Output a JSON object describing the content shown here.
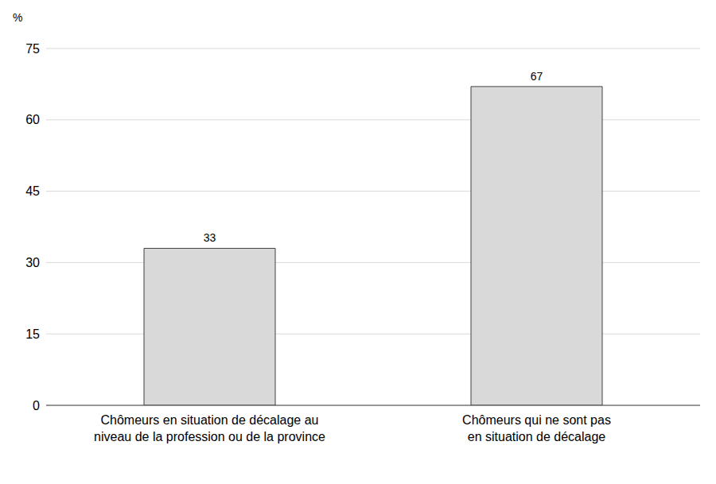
{
  "chart_data": {
    "type": "bar",
    "ylabel": "%",
    "categories": [
      "Chômeurs en situation de décalage au\nniveau de la profession ou de la province",
      "Chômeurs qui ne sont pas\nen situation de décalage"
    ],
    "values": [
      33,
      67
    ],
    "color": "#d9d9d9",
    "ylim": [
      0,
      75
    ],
    "yticks": [
      0,
      15,
      30,
      45,
      60,
      75
    ],
    "grid": true,
    "data_labels": true
  }
}
